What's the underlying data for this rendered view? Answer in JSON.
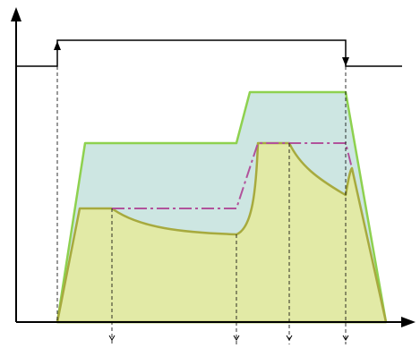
{
  "colors": {
    "background": "#ffffff",
    "axis": "#000000",
    "outer_fill": "#cde6e2",
    "outer_stroke": "#8ed14f",
    "inner_fill": "#e2eaa6",
    "inner_stroke": "#a7aa3e",
    "setpoint": "#b1529b",
    "guide": "#000000",
    "signal": "#000000"
  },
  "icons": {
    "axis_arrow": "filled-triangle-arrowhead",
    "marker_arrow": "small-down-arrowhead"
  }
}
